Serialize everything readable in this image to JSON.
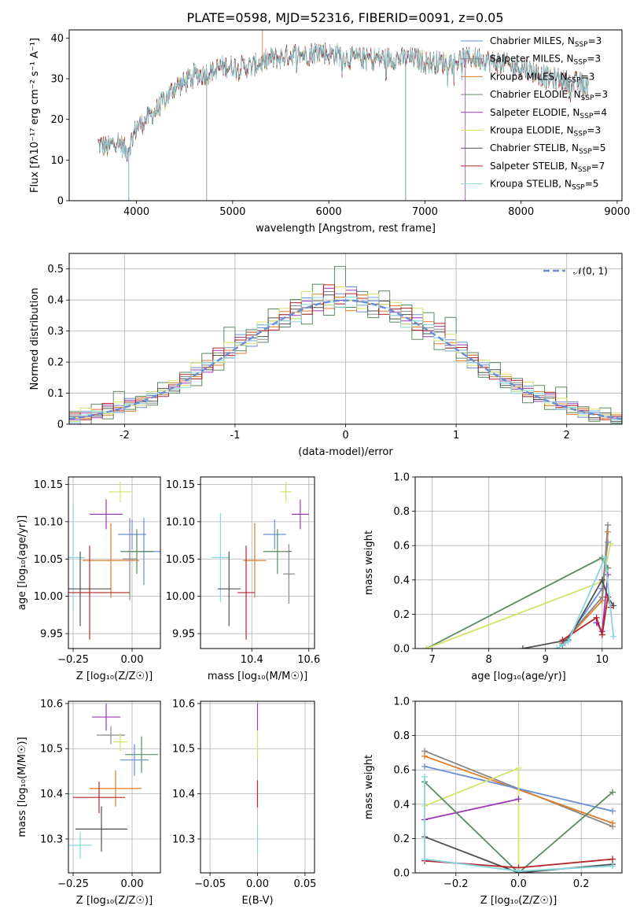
{
  "title": "PLATE=0598, MJD=52316, FIBERID=0091, z=0.05",
  "colors": {
    "Chabrier MILES": "#6a8fd6",
    "Salpeter MILES": "#888888",
    "Kroupa MILES": "#e07b28",
    "Chabrier ELODIE": "#5b8a62",
    "Salpeter ELODIE": "#9b39b5",
    "Kroupa ELODIE": "#d4e36b",
    "Chabrier STELIB": "#505050",
    "Salpeter STELIB": "#b3262a",
    "Kroupa STELIB": "#86d6e0",
    "normal": "#6a8fd6"
  },
  "chart_data": [
    {
      "type": "line",
      "xlabel": "wavelength [Angstrom, rest frame]",
      "ylabel": "Flux [fλ10⁻¹⁷ erg cm⁻² s⁻¹ A⁻¹]",
      "xlim": [
        3300,
        9050
      ],
      "ylim": [
        0,
        42
      ],
      "xticks": [
        4000,
        5000,
        6000,
        7000,
        8000,
        9000
      ],
      "yticks": [
        0,
        10,
        20,
        30,
        40
      ],
      "grid": false,
      "legend_position": "top-right",
      "legend": [
        {
          "name": "Chabrier MILES",
          "label": "Chabrier MILES, N",
          "sub": "SSP",
          "n": "=3"
        },
        {
          "name": "Salpeter MILES",
          "label": "Salpeter MILES, N",
          "sub": "SSP",
          "n": "=3"
        },
        {
          "name": "Kroupa MILES",
          "label": "Kroupa MILES, N",
          "sub": "SSP",
          "n": "=3"
        },
        {
          "name": "Chabrier ELODIE",
          "label": "Chabrier ELODIE, N",
          "sub": "SSP",
          "n": "=3"
        },
        {
          "name": "Salpeter ELODIE",
          "label": "Salpeter ELODIE, N",
          "sub": "SSP",
          "n": "=4"
        },
        {
          "name": "Kroupa ELODIE",
          "label": "Kroupa ELODIE, N",
          "sub": "SSP",
          "n": "=3"
        },
        {
          "name": "Chabrier STELIB",
          "label": "Chabrier STELIB, N",
          "sub": "SSP",
          "n": "=5"
        },
        {
          "name": "Salpeter STELIB",
          "label": "Salpeter STELIB, N",
          "sub": "SSP",
          "n": "=7"
        },
        {
          "name": "Kroupa STELIB",
          "label": "Kroupa STELIB, N",
          "sub": "SSP",
          "n": "=5"
        }
      ],
      "continuum": {
        "x": [
          3600,
          3700,
          3800,
          3900,
          4000,
          4100,
          4200,
          4300,
          4400,
          4500,
          4600,
          4700,
          4800,
          4900,
          5000,
          5100,
          5200,
          5300,
          5400,
          5500,
          5600,
          5700,
          5800,
          5900,
          6000,
          6100,
          6200,
          6300,
          6400,
          6500,
          6600,
          6700,
          6800,
          6900,
          7000,
          7100,
          7200,
          7300,
          7400,
          7500,
          7600,
          7700,
          7800,
          7900,
          8000,
          8100,
          8200,
          8300,
          8400,
          8500,
          8600,
          8700
        ],
        "y": [
          14,
          13,
          15,
          12,
          18,
          20,
          22,
          25,
          28,
          29,
          31,
          31,
          32,
          33,
          33,
          33,
          33,
          34,
          35,
          35,
          36,
          36,
          36,
          37,
          36,
          36,
          35,
          35,
          35,
          35,
          35,
          35,
          35,
          35,
          34,
          34,
          34,
          34,
          35,
          35,
          35,
          34,
          34,
          33,
          33,
          32,
          31,
          30,
          30,
          29,
          29,
          28
        ]
      },
      "noise_amplitude": 2.5,
      "spikes": [
        {
          "x": 3920,
          "y": 0
        },
        {
          "x": 4730,
          "y": 0
        },
        {
          "x": 5310,
          "y": 43
        },
        {
          "x": 6800,
          "y": 0
        },
        {
          "x": 7420,
          "y": 0
        }
      ]
    },
    {
      "type": "line",
      "xlabel": "(data-model)/error",
      "ylabel": "Normed distribution",
      "xlim": [
        -2.5,
        2.5
      ],
      "ylim": [
        0,
        0.55
      ],
      "xticks": [
        -2,
        -1,
        0,
        1,
        2
      ],
      "yticks": [
        0.0,
        0.1,
        0.2,
        0.3,
        0.4,
        0.5
      ],
      "grid": true,
      "legend_position": "top-right",
      "legend_label": "𝒩(0, 1)",
      "bin_width": 0.1,
      "series": [
        {
          "name": "Chabrier MILES",
          "offsets": [
            0.01,
            -0.02,
            0.03,
            0.0,
            -0.01,
            0.02,
            0.04,
            -0.03,
            0.01,
            0.0
          ]
        },
        {
          "name": "Salpeter MILES",
          "offsets": [
            -0.01,
            0.02,
            -0.02,
            0.01,
            0.03,
            -0.01,
            0.0,
            0.02,
            -0.03,
            0.01
          ]
        },
        {
          "name": "Kroupa MILES",
          "offsets": [
            0.02,
            0.0,
            -0.01,
            0.03,
            -0.02,
            0.01,
            -0.03,
            0.02,
            0.0,
            -0.01
          ]
        },
        {
          "name": "Chabrier ELODIE",
          "offsets": [
            -0.03,
            0.04,
            -0.05,
            0.06,
            -0.04,
            0.1,
            -0.02,
            0.03,
            -0.04,
            0.05
          ]
        },
        {
          "name": "Salpeter ELODIE",
          "offsets": [
            0.0,
            -0.01,
            0.02,
            -0.02,
            0.04,
            0.0,
            0.03,
            -0.01,
            0.02,
            0.0
          ]
        },
        {
          "name": "Kroupa ELODIE",
          "offsets": [
            0.03,
            -0.02,
            0.05,
            0.02,
            -0.01,
            0.04,
            0.0,
            -0.02,
            0.03,
            0.01
          ]
        },
        {
          "name": "Chabrier STELIB",
          "offsets": [
            -0.02,
            0.01,
            0.0,
            -0.01,
            0.02,
            -0.02,
            0.01,
            0.0,
            -0.02,
            0.02
          ]
        },
        {
          "name": "Salpeter STELIB",
          "offsets": [
            0.01,
            0.03,
            -0.02,
            0.0,
            0.05,
            -0.01,
            0.02,
            0.01,
            0.0,
            -0.02
          ]
        },
        {
          "name": "Kroupa STELIB",
          "offsets": [
            -0.01,
            -0.03,
            0.01,
            0.02,
            0.0,
            -0.02,
            0.01,
            -0.01,
            0.02,
            0.0
          ]
        }
      ]
    },
    {
      "type": "scatter",
      "xlabel": "Z [log₁₀(Z/Z☉)]",
      "ylabel": "age  [log₁₀(age/yr)]",
      "xlim": [
        -0.27,
        0.12
      ],
      "ylim": [
        9.93,
        10.16
      ],
      "xticks": [
        -0.25,
        0.0
      ],
      "xtick_labels": [
        "−0.25",
        "0.00"
      ],
      "yticks": [
        9.95,
        10.0,
        10.05,
        10.1,
        10.15
      ],
      "ytick_labels": [
        "9.95",
        "10.00",
        "10.05",
        "10.10",
        "10.15"
      ],
      "grid": true,
      "points": [
        {
          "name": "Kroupa ELODIE",
          "x": -0.05,
          "y": 10.14,
          "xerr": 0.05,
          "yerr": 0.014
        },
        {
          "name": "Salpeter ELODIE",
          "x": -0.11,
          "y": 10.11,
          "xerr": 0.07,
          "yerr": 0.02
        },
        {
          "name": "Chabrier MILES",
          "x": 0.0,
          "y": 10.083,
          "xerr": 0.06,
          "yerr": 0.02
        },
        {
          "name": "Chabrier MILES",
          "x": 0.05,
          "y": 10.06,
          "xerr": 0.07,
          "yerr": 0.045
        },
        {
          "name": "Chabrier ELODIE",
          "x": 0.02,
          "y": 10.06,
          "xerr": 0.07,
          "yerr": 0.03
        },
        {
          "name": "Kroupa STELIB",
          "x": -0.25,
          "y": 10.052,
          "xerr": 0.05,
          "yerr": 0.07
        },
        {
          "name": "Kroupa MILES",
          "x": -0.09,
          "y": 10.048,
          "xerr": 0.12,
          "yerr": 0.05
        },
        {
          "name": "Salpeter MILES",
          "x": -0.01,
          "y": 10.05,
          "xerr": 0.03,
          "yerr": 0.055
        },
        {
          "name": "Chabrier STELIB",
          "x": -0.22,
          "y": 10.01,
          "xerr": 0.13,
          "yerr": 0.05
        },
        {
          "name": "Salpeter STELIB",
          "x": -0.18,
          "y": 10.005,
          "xerr": 0.17,
          "yerr": 0.063
        }
      ]
    },
    {
      "type": "scatter",
      "xlabel": "mass [log₁₀(M/M☉)]",
      "ylabel": "",
      "xlim": [
        10.22,
        10.62
      ],
      "ylim": [
        9.93,
        10.16
      ],
      "xticks": [
        10.4,
        10.6
      ],
      "xtick_labels": [
        "10.4",
        "10.6"
      ],
      "yticks": [
        9.95,
        10.0,
        10.05,
        10.1,
        10.15
      ],
      "ytick_labels": [
        "9.95",
        "10.00",
        "10.05",
        "10.10",
        "10.15"
      ],
      "grid": true,
      "points": [
        {
          "name": "Kroupa ELODIE",
          "x": 10.52,
          "y": 10.14,
          "xerr": 0.02,
          "yerr": 0.014
        },
        {
          "name": "Salpeter ELODIE",
          "x": 10.57,
          "y": 10.11,
          "xerr": 0.03,
          "yerr": 0.02
        },
        {
          "name": "Chabrier MILES",
          "x": 10.48,
          "y": 10.083,
          "xerr": 0.04,
          "yerr": 0.02
        },
        {
          "name": "Chabrier ELODIE",
          "x": 10.49,
          "y": 10.06,
          "xerr": 0.05,
          "yerr": 0.03
        },
        {
          "name": "Kroupa STELIB",
          "x": 10.29,
          "y": 10.052,
          "xerr": 0.03,
          "yerr": 0.06
        },
        {
          "name": "Kroupa MILES",
          "x": 10.41,
          "y": 10.048,
          "xerr": 0.04,
          "yerr": 0.05
        },
        {
          "name": "Salpeter MILES",
          "x": 10.53,
          "y": 10.03,
          "xerr": 0.02,
          "yerr": 0.04
        },
        {
          "name": "Chabrier STELIB",
          "x": 10.32,
          "y": 10.01,
          "xerr": 0.04,
          "yerr": 0.05
        },
        {
          "name": "Salpeter STELIB",
          "x": 10.38,
          "y": 10.005,
          "xerr": 0.03,
          "yerr": 0.063
        }
      ]
    },
    {
      "type": "line",
      "xlabel": "age  [log₁₀(age/yr)]",
      "ylabel": "mass weight",
      "xlim": [
        6.7,
        10.35
      ],
      "ylim": [
        0,
        1
      ],
      "xticks": [
        7,
        8,
        9,
        10
      ],
      "yticks": [
        0.0,
        0.2,
        0.4,
        0.6,
        0.8,
        1.0
      ],
      "ytick_labels": [
        "0.0",
        "0.2",
        "0.4",
        "0.6",
        "0.8",
        "1.0"
      ],
      "grid": true,
      "series": [
        {
          "name": "Chabrier ELODIE",
          "x": [
            6.9,
            10.0,
            10.1
          ],
          "y": [
            0.0,
            0.53,
            0.47
          ]
        },
        {
          "name": "Kroupa ELODIE",
          "x": [
            6.9,
            10.0,
            10.15
          ],
          "y": [
            0.0,
            0.39,
            0.61
          ]
        },
        {
          "name": "Chabrier MILES",
          "x": [
            9.3,
            10.0,
            10.1
          ],
          "y": [
            0.02,
            0.35,
            0.62
          ]
        },
        {
          "name": "Kroupa MILES",
          "x": [
            9.3,
            10.0,
            10.1
          ],
          "y": [
            0.03,
            0.28,
            0.68
          ]
        },
        {
          "name": "Salpeter MILES",
          "x": [
            9.3,
            10.0,
            10.1
          ],
          "y": [
            0.03,
            0.3,
            0.72
          ]
        },
        {
          "name": "Salpeter ELODIE",
          "x": [
            9.9,
            10.0,
            10.1
          ],
          "y": [
            0.15,
            0.1,
            0.43
          ]
        },
        {
          "name": "Chabrier STELIB",
          "x": [
            8.6,
            9.4,
            10.0,
            10.1,
            10.2
          ],
          "y": [
            0.0,
            0.05,
            0.4,
            0.3,
            0.25
          ]
        },
        {
          "name": "Salpeter STELIB",
          "x": [
            9.3,
            9.9,
            10.0,
            10.1,
            10.15
          ],
          "y": [
            0.05,
            0.18,
            0.08,
            0.3,
            0.24
          ]
        },
        {
          "name": "Kroupa STELIB",
          "x": [
            9.2,
            9.4,
            10.05,
            10.2
          ],
          "y": [
            0.0,
            0.04,
            0.53,
            0.07
          ]
        }
      ]
    },
    {
      "type": "scatter",
      "xlabel": "Z [log₁₀(Z/Z☉)]",
      "ylabel": "mass [log₁₀(M/M☉)]",
      "xlim": [
        -0.27,
        0.12
      ],
      "ylim": [
        10.225,
        10.605
      ],
      "xticks": [
        -0.25,
        0.0
      ],
      "xtick_labels": [
        "−0.25",
        "0.00"
      ],
      "yticks": [
        10.3,
        10.4,
        10.5,
        10.6
      ],
      "ytick_labels": [
        "10.3",
        "10.4",
        "10.5",
        "10.6"
      ],
      "grid": true,
      "points": [
        {
          "name": "Salpeter ELODIE",
          "x": -0.11,
          "y": 10.57,
          "xerr": 0.06,
          "yerr": 0.03
        },
        {
          "name": "Salpeter MILES",
          "x": -0.09,
          "y": 10.53,
          "xerr": 0.06,
          "yerr": 0.02
        },
        {
          "name": "Kroupa ELODIE",
          "x": -0.05,
          "y": 10.515,
          "xerr": 0.03,
          "yerr": 0.02
        },
        {
          "name": "Chabrier ELODIE",
          "x": 0.04,
          "y": 10.487,
          "xerr": 0.07,
          "yerr": 0.04
        },
        {
          "name": "Chabrier MILES",
          "x": 0.01,
          "y": 10.475,
          "xerr": 0.06,
          "yerr": 0.035
        },
        {
          "name": "Kroupa MILES",
          "x": -0.07,
          "y": 10.412,
          "xerr": 0.11,
          "yerr": 0.04
        },
        {
          "name": "Salpeter STELIB",
          "x": -0.14,
          "y": 10.392,
          "xerr": 0.11,
          "yerr": 0.035
        },
        {
          "name": "Chabrier STELIB",
          "x": -0.13,
          "y": 10.322,
          "xerr": 0.11,
          "yerr": 0.05
        },
        {
          "name": "Kroupa STELIB",
          "x": -0.22,
          "y": 10.286,
          "xerr": 0.05,
          "yerr": 0.03
        }
      ]
    },
    {
      "type": "scatter",
      "xlabel": "E(B-V)",
      "ylabel": "",
      "xlim": [
        -0.06,
        0.06
      ],
      "ylim": [
        10.225,
        10.605
      ],
      "xticks": [
        -0.05,
        0.0,
        0.05
      ],
      "xtick_labels": [
        "−0.05",
        "0.00",
        "0.05"
      ],
      "yticks": [
        10.3,
        10.4,
        10.5,
        10.6
      ],
      "ytick_labels": [
        "10.3",
        "10.4",
        "10.5",
        "10.6"
      ],
      "grid": true,
      "points": [
        {
          "name": "Salpeter ELODIE",
          "x": 0.0,
          "y": 10.57,
          "xerr": 0.0,
          "yerr": 0.03
        },
        {
          "name": "Kroupa ELODIE",
          "x": 0.0,
          "y": 10.51,
          "xerr": 0.0,
          "yerr": 0.03
        },
        {
          "name": "Salpeter STELIB",
          "x": 0.0,
          "y": 10.4,
          "xerr": 0.0,
          "yerr": 0.03
        },
        {
          "name": "Kroupa STELIB",
          "x": 0.0,
          "y": 10.3,
          "xerr": 0.0,
          "yerr": 0.03
        }
      ]
    },
    {
      "type": "line",
      "xlabel": "Z [log₁₀(Z/Z☉)]",
      "ylabel": "mass weight",
      "xlim": [
        -0.33,
        0.33
      ],
      "ylim": [
        0,
        1
      ],
      "xticks": [
        -0.2,
        0.0,
        0.2
      ],
      "xtick_labels": [
        "−0.2",
        "0.0",
        "0.2"
      ],
      "yticks": [
        0.0,
        0.2,
        0.4,
        0.6,
        0.8,
        1.0
      ],
      "ytick_labels": [
        "0.0",
        "0.2",
        "0.4",
        "0.6",
        "0.8",
        "1.0"
      ],
      "grid": true,
      "series": [
        {
          "name": "Salpeter MILES",
          "x": [
            -0.3,
            0.3
          ],
          "y": [
            0.71,
            0.27
          ]
        },
        {
          "name": "Kroupa MILES",
          "x": [
            -0.3,
            0.3
          ],
          "y": [
            0.68,
            0.29
          ]
        },
        {
          "name": "Chabrier MILES",
          "x": [
            -0.3,
            0.3
          ],
          "y": [
            0.62,
            0.36
          ]
        },
        {
          "name": "Kroupa ELODIE",
          "x": [
            -0.3,
            0.0,
            0.0
          ],
          "y": [
            0.39,
            0.61,
            0.0
          ]
        },
        {
          "name": "Salpeter ELODIE",
          "x": [
            -0.3,
            0.0
          ],
          "y": [
            0.31,
            0.43
          ]
        },
        {
          "name": "Chabrier ELODIE",
          "x": [
            -0.3,
            0.0,
            0.3
          ],
          "y": [
            0.53,
            0.0,
            0.47
          ]
        },
        {
          "name": "Chabrier STELIB",
          "x": [
            -0.3,
            0.0,
            0.3
          ],
          "y": [
            0.21,
            0.0,
            0.05
          ]
        },
        {
          "name": "Salpeter STELIB",
          "x": [
            -0.3,
            0.0,
            0.3
          ],
          "y": [
            0.07,
            0.03,
            0.08
          ]
        },
        {
          "name": "Kroupa STELIB",
          "x": [
            -0.3,
            -0.3,
            0.0,
            0.3
          ],
          "y": [
            0.56,
            0.08,
            0.01,
            0.04
          ]
        }
      ]
    }
  ]
}
